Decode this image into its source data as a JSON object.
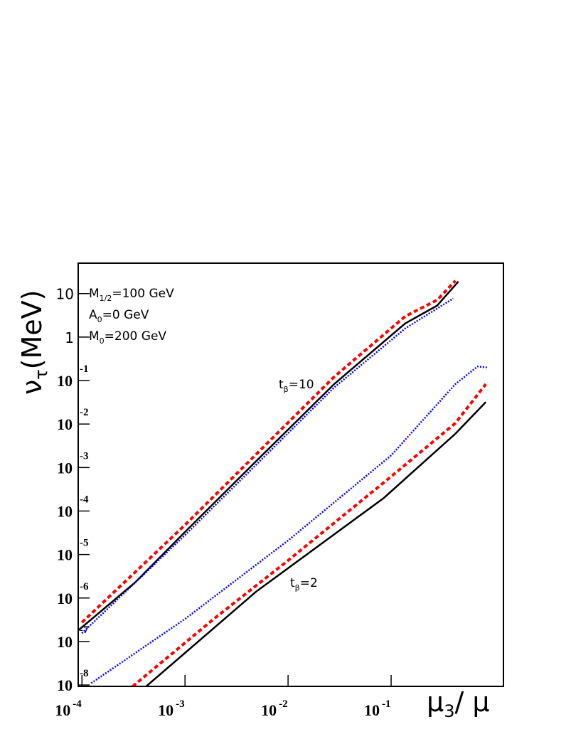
{
  "chart_data": {
    "type": "line",
    "x_label": {
      "main": "μ",
      "sub": "3",
      "rest": "/ μ"
    },
    "y_label": {
      "main": "ν",
      "sub": "τ",
      "rest": "(MeV)"
    },
    "annotations": [
      {
        "main": "M",
        "sub": "1/2",
        "rest": "=100 GeV"
      },
      {
        "main": "A",
        "sub": "0",
        "rest": "=0  GeV"
      },
      {
        "main": "M",
        "sub": "0",
        "rest": "=200 GeV"
      },
      {
        "main": "t",
        "sub": "β",
        "rest": "=10"
      },
      {
        "main": "t",
        "sub": "β",
        "rest": "=2"
      }
    ],
    "log_x": true,
    "log_y": true,
    "xlim": [
      9.2e-05,
      1.23
    ],
    "ylim": [
      9.3e-09,
      50
    ],
    "xticks": [
      {
        "value": 0.0001,
        "label": "10",
        "exponent": "-4"
      },
      {
        "value": 0.001,
        "label": "10",
        "exponent": "-3"
      },
      {
        "value": 0.01,
        "label": "10",
        "exponent": "-2"
      },
      {
        "value": 0.1,
        "label": "10",
        "exponent": "-1"
      }
    ],
    "yticks": [
      10,
      1,
      {
        "value": 0.1,
        "label": "10",
        "exponent": "-1"
      },
      {
        "value": 0.01,
        "label": "10",
        "exponent": "-2"
      },
      {
        "value": 0.001,
        "label": "10",
        "exponent": "-3"
      },
      {
        "value": 0.0001,
        "label": "10",
        "exponent": "-4"
      },
      {
        "value": 1e-05,
        "label": "10",
        "exponent": "-5"
      },
      {
        "value": 1e-06,
        "label": "10",
        "exponent": "-6"
      },
      {
        "value": 1e-07,
        "label": "10",
        "exponent": "-7"
      },
      {
        "value": 1e-08,
        "label": "10",
        "exponent": "-8"
      }
    ],
    "series": [
      {
        "color": "#000000",
        "style": "solid",
        "x": [
          9.2e-05,
          0.000329,
          0.001,
          0.0049,
          0.028,
          0.137,
          0.28,
          0.37,
          0.45
        ],
        "values": [
          1.8e-07,
          2.3e-06,
          3.3e-05,
          0.0014,
          0.083,
          2.06,
          5.3,
          11.2,
          19
        ]
      },
      {
        "color": "#ff0000",
        "style": "dashed",
        "x": [
          0.0001,
          0.001,
          0.028,
          0.137,
          0.28,
          0.42
        ],
        "values": [
          2.75e-07,
          4.8e-05,
          0.122,
          3.0,
          7.1,
          19.7
        ]
      },
      {
        "color": "#0000ff",
        "style": "dotted",
        "x": [
          0.0001,
          0.001,
          0.028,
          0.137,
          0.4
        ],
        "values": [
          1.55e-07,
          2.8e-05,
          0.069,
          1.58,
          7.7
        ]
      },
      {
        "color": "#0000ff",
        "style": "dotted",
        "x": [
          0.000123,
          0.001,
          0.01,
          0.1,
          0.42,
          0.69,
          0.85
        ],
        "values": [
          1.1e-08,
          3.3e-07,
          2.1e-05,
          0.0019,
          0.083,
          0.21,
          0.2
        ]
      },
      {
        "color": "#ff0000",
        "style": "dashed",
        "x": [
          0.00031,
          0.0019,
          0.01,
          0.1,
          0.42,
          0.83
        ],
        "values": [
          9.3e-09,
          3.3e-07,
          7.3e-06,
          0.00062,
          0.0105,
          0.083
        ]
      },
      {
        "color": "#000000",
        "style": "solid",
        "x": [
          0.00042,
          0.0049,
          0.085,
          0.42,
          0.83
        ],
        "values": [
          9.3e-09,
          1.4e-06,
          0.0002,
          0.006,
          0.032
        ]
      }
    ]
  }
}
